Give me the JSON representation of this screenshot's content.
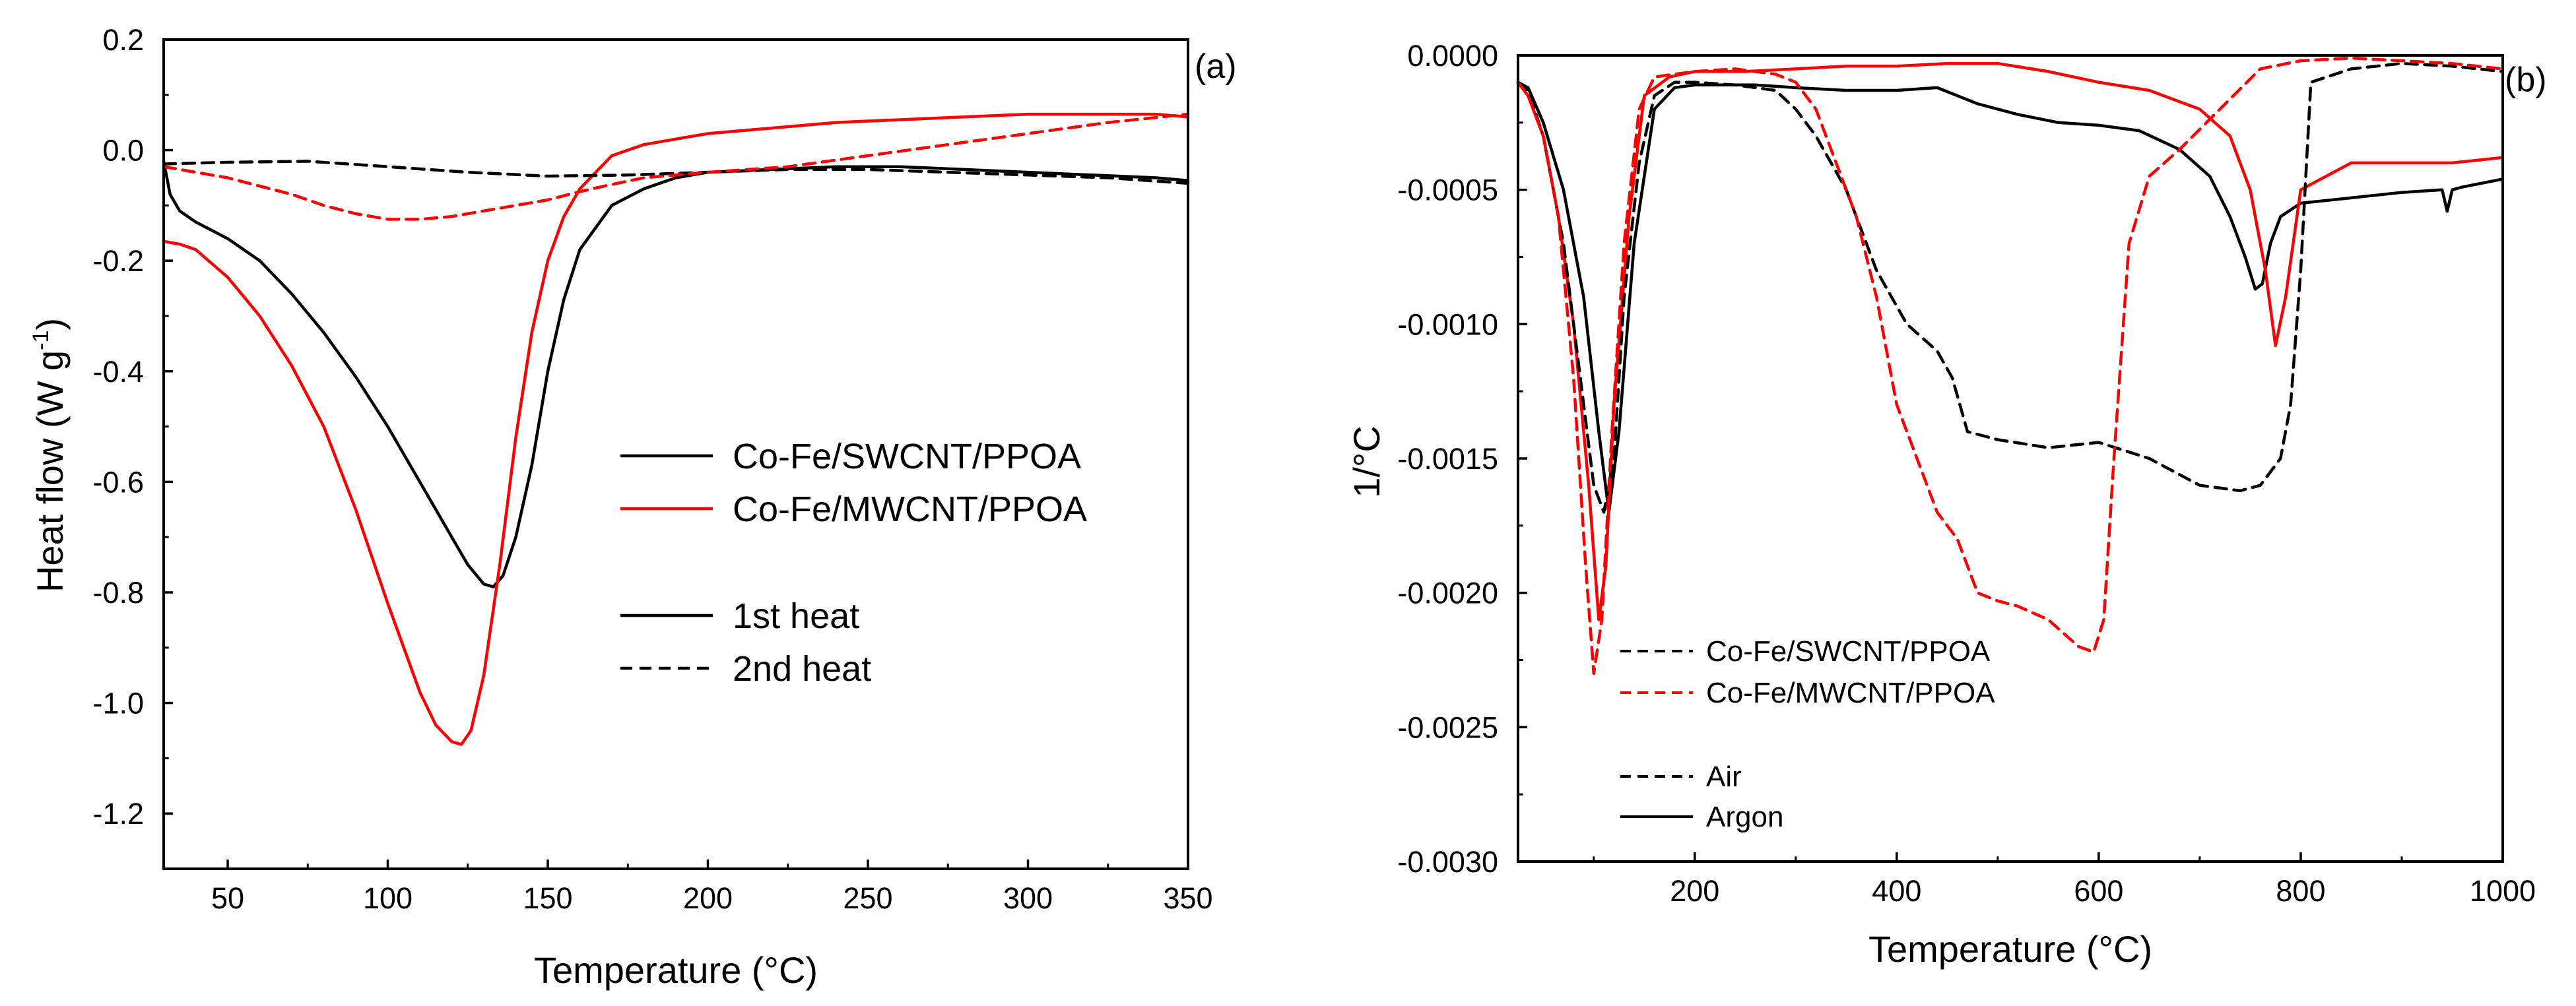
{
  "chart_data": [
    {
      "panel_label": "(a)",
      "type": "line",
      "xlabel": "Temperature (°C)",
      "ylabel_main": "Heat flow (W g",
      "ylabel_sup": "-1",
      "ylabel_close": ")",
      "xlim": [
        30,
        350
      ],
      "ylim": [
        -1.3,
        0.2
      ],
      "xticks": [
        50,
        100,
        150,
        200,
        250,
        300,
        350
      ],
      "xtick_labels": [
        "50",
        "100",
        "150",
        "200",
        "250",
        "300",
        "350"
      ],
      "yticks": [
        0.2,
        0.0,
        -0.2,
        -0.4,
        -0.6,
        -0.8,
        -1.0,
        -1.2
      ],
      "ytick_labels": [
        "0.2",
        "0.0",
        "-0.2",
        "-0.4",
        "-0.6",
        "-0.8",
        "-1.0",
        "-1.2"
      ],
      "legend": [
        {
          "label": "Co-Fe/SWCNT/PPOA",
          "color": "#000000",
          "dash": "solid"
        },
        {
          "label": "Co-Fe/MWCNT/PPOA",
          "color": "#ff0000",
          "dash": "solid"
        },
        {
          "label": "1st heat",
          "color": "#000000",
          "dash": "solid"
        },
        {
          "label": "2nd heat",
          "color": "#000000",
          "dash": "dashed"
        }
      ],
      "series": [
        {
          "name": "Co-Fe/SWCNT/PPOA 1st heat",
          "color": "#000000",
          "dash": "solid",
          "x": [
            30,
            32,
            35,
            40,
            50,
            60,
            70,
            80,
            90,
            100,
            110,
            120,
            125,
            130,
            133,
            136,
            140,
            145,
            150,
            155,
            160,
            170,
            180,
            190,
            200,
            220,
            240,
            260,
            280,
            300,
            320,
            340,
            350
          ],
          "y": [
            -0.02,
            -0.08,
            -0.11,
            -0.13,
            -0.16,
            -0.2,
            -0.26,
            -0.33,
            -0.41,
            -0.5,
            -0.6,
            -0.7,
            -0.75,
            -0.785,
            -0.79,
            -0.77,
            -0.7,
            -0.57,
            -0.4,
            -0.27,
            -0.18,
            -0.1,
            -0.07,
            -0.05,
            -0.04,
            -0.035,
            -0.03,
            -0.03,
            -0.035,
            -0.04,
            -0.045,
            -0.05,
            -0.055
          ]
        },
        {
          "name": "Co-Fe/MWCNT/PPOA 1st heat",
          "color": "#ff0000",
          "dash": "solid",
          "x": [
            30,
            35,
            40,
            50,
            60,
            70,
            80,
            90,
            100,
            105,
            110,
            115,
            120,
            123,
            126,
            130,
            135,
            140,
            145,
            150,
            155,
            160,
            170,
            180,
            190,
            200,
            220,
            240,
            260,
            280,
            300,
            320,
            340,
            350
          ],
          "y": [
            -0.165,
            -0.17,
            -0.18,
            -0.23,
            -0.3,
            -0.39,
            -0.5,
            -0.65,
            -0.82,
            -0.9,
            -0.98,
            -1.04,
            -1.07,
            -1.075,
            -1.05,
            -0.95,
            -0.75,
            -0.52,
            -0.33,
            -0.2,
            -0.12,
            -0.07,
            -0.01,
            0.01,
            0.02,
            0.03,
            0.04,
            0.05,
            0.055,
            0.06,
            0.065,
            0.065,
            0.065,
            0.06
          ]
        },
        {
          "name": "Co-Fe/SWCNT/PPOA 2nd heat",
          "color": "#000000",
          "dash": "dashed",
          "x": [
            30,
            50,
            75,
            100,
            125,
            150,
            175,
            200,
            225,
            250,
            275,
            300,
            325,
            350
          ],
          "y": [
            -0.025,
            -0.022,
            -0.02,
            -0.03,
            -0.04,
            -0.047,
            -0.045,
            -0.04,
            -0.035,
            -0.035,
            -0.04,
            -0.045,
            -0.05,
            -0.06
          ]
        },
        {
          "name": "Co-Fe/MWCNT/PPOA 2nd heat",
          "color": "#ff0000",
          "dash": "dashed",
          "x": [
            30,
            40,
            50,
            60,
            70,
            80,
            90,
            100,
            110,
            120,
            130,
            140,
            150,
            160,
            170,
            180,
            200,
            225,
            250,
            275,
            300,
            325,
            350
          ],
          "y": [
            -0.03,
            -0.04,
            -0.05,
            -0.065,
            -0.08,
            -0.1,
            -0.115,
            -0.125,
            -0.125,
            -0.12,
            -0.11,
            -0.1,
            -0.09,
            -0.075,
            -0.062,
            -0.05,
            -0.04,
            -0.03,
            -0.01,
            0.01,
            0.03,
            0.05,
            0.065
          ]
        }
      ]
    },
    {
      "panel_label": "(b)",
      "type": "line",
      "xlabel": "Temperature (°C)",
      "ylabel": "1/°C",
      "xlim": [
        25,
        1000
      ],
      "ylim": [
        -0.003,
        0.0
      ],
      "xticks": [
        200,
        400,
        600,
        800,
        1000
      ],
      "xtick_labels": [
        "200",
        "400",
        "600",
        "800",
        "1000"
      ],
      "yticks": [
        0.0,
        -0.0005,
        -0.001,
        -0.0015,
        -0.002,
        -0.0025,
        -0.003
      ],
      "ytick_labels": [
        "0.0000",
        "-0.0005",
        "-0.0010",
        "-0.0015",
        "-0.0020",
        "-0.0025",
        "-0.0030"
      ],
      "legend": [
        {
          "label": "Co-Fe/SWCNT/PPOA",
          "color": "#000000",
          "dash": "dashed"
        },
        {
          "label": "Co-Fe/MWCNT/PPOA",
          "color": "#ff0000",
          "dash": "dashed"
        },
        {
          "label": "Air",
          "color": "#000000",
          "dash": "dashed"
        },
        {
          "label": "Argon",
          "color": "#000000",
          "dash": "solid"
        }
      ],
      "series": [
        {
          "name": "Co-Fe/SWCNT/PPOA Argon",
          "color": "#000000",
          "dash": "solid",
          "x": [
            25,
            35,
            50,
            70,
            90,
            105,
            115,
            125,
            140,
            160,
            180,
            200,
            230,
            260,
            300,
            350,
            400,
            440,
            480,
            520,
            560,
            600,
            640,
            680,
            710,
            730,
            745,
            755,
            762,
            770,
            780,
            800,
            850,
            900,
            940,
            945,
            950,
            960,
            1000
          ],
          "y": [
            -0.0001,
            -0.00012,
            -0.00025,
            -0.0005,
            -0.0009,
            -0.0014,
            -0.0017,
            -0.0014,
            -0.0007,
            -0.0002,
            -0.00012,
            -0.00011,
            -0.00011,
            -0.00011,
            -0.00012,
            -0.00013,
            -0.00013,
            -0.00012,
            -0.00018,
            -0.00022,
            -0.00025,
            -0.00026,
            -0.00028,
            -0.00035,
            -0.00045,
            -0.0006,
            -0.00075,
            -0.00087,
            -0.00085,
            -0.0007,
            -0.0006,
            -0.00055,
            -0.00053,
            -0.00051,
            -0.0005,
            -0.00058,
            -0.0005,
            -0.00049,
            -0.00046
          ]
        },
        {
          "name": "Co-Fe/MWCNT/PPOA Argon",
          "color": "#ff0000",
          "dash": "solid",
          "x": [
            25,
            35,
            50,
            65,
            80,
            95,
            105,
            112,
            120,
            135,
            150,
            175,
            200,
            250,
            300,
            350,
            400,
            450,
            500,
            550,
            600,
            650,
            700,
            730,
            750,
            765,
            775,
            785,
            800,
            850,
            900,
            950,
            1000
          ],
          "y": [
            -0.0001,
            -0.00015,
            -0.0003,
            -0.0006,
            -0.001,
            -0.0016,
            -0.0021,
            -0.0019,
            -0.0013,
            -0.0006,
            -0.00015,
            -8e-05,
            -6e-05,
            -6e-05,
            -5e-05,
            -4e-05,
            -4e-05,
            -3e-05,
            -3e-05,
            -6e-05,
            -0.0001,
            -0.00013,
            -0.0002,
            -0.0003,
            -0.0005,
            -0.0008,
            -0.00108,
            -0.0009,
            -0.0005,
            -0.0004,
            -0.0004,
            -0.0004,
            -0.00038
          ]
        },
        {
          "name": "Co-Fe/SWCNT/PPOA Air",
          "color": "#000000",
          "dash": "dashed",
          "x": [
            25,
            35,
            50,
            70,
            90,
            100,
            110,
            120,
            130,
            145,
            160,
            180,
            200,
            240,
            280,
            300,
            320,
            350,
            380,
            410,
            440,
            455,
            470,
            500,
            550,
            600,
            650,
            700,
            740,
            760,
            780,
            790,
            800,
            810,
            850,
            900,
            950,
            1000
          ],
          "y": [
            -0.0001,
            -0.00013,
            -0.0003,
            -0.0007,
            -0.0013,
            -0.0016,
            -0.0017,
            -0.0015,
            -0.0009,
            -0.0004,
            -0.00015,
            -0.0001,
            -0.0001,
            -0.00011,
            -0.00013,
            -0.0002,
            -0.0003,
            -0.0005,
            -0.0008,
            -0.001,
            -0.0011,
            -0.0012,
            -0.0014,
            -0.00143,
            -0.00146,
            -0.00144,
            -0.0015,
            -0.0016,
            -0.00162,
            -0.0016,
            -0.0015,
            -0.0013,
            -0.0008,
            -0.0001,
            -5e-05,
            -3e-05,
            -4e-05,
            -6e-05
          ]
        },
        {
          "name": "Co-Fe/MWCNT/PPOA Air",
          "color": "#ff0000",
          "dash": "dashed",
          "x": [
            25,
            35,
            50,
            65,
            80,
            92,
            100,
            108,
            118,
            130,
            145,
            160,
            200,
            240,
            280,
            300,
            320,
            340,
            360,
            380,
            400,
            420,
            440,
            460,
            480,
            500,
            520,
            550,
            580,
            595,
            605,
            615,
            630,
            650,
            680,
            720,
            760,
            800,
            850,
            900,
            950,
            1000
          ],
          "y": [
            -0.0001,
            -0.00015,
            -0.0003,
            -0.0006,
            -0.0012,
            -0.0019,
            -0.0023,
            -0.0021,
            -0.0014,
            -0.0007,
            -0.0002,
            -8e-05,
            -6e-05,
            -5e-05,
            -7e-05,
            -0.0001,
            -0.0002,
            -0.0004,
            -0.0006,
            -0.0009,
            -0.0013,
            -0.0015,
            -0.0017,
            -0.0018,
            -0.002,
            -0.00203,
            -0.00205,
            -0.0021,
            -0.0022,
            -0.00222,
            -0.0021,
            -0.0015,
            -0.0007,
            -0.00045,
            -0.00035,
            -0.0002,
            -5e-05,
            -2e-05,
            -1e-05,
            -2e-05,
            -3e-05,
            -5e-05
          ]
        }
      ]
    }
  ]
}
